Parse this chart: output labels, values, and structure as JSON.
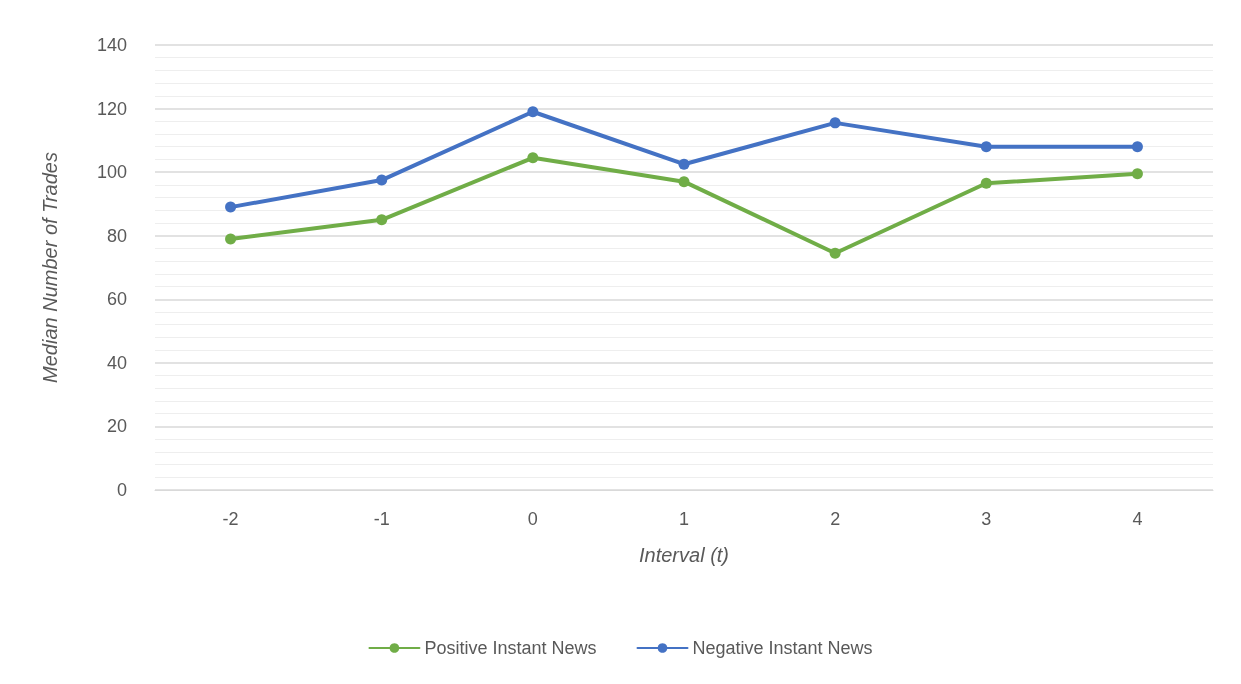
{
  "chart_data": {
    "type": "line",
    "xlabel": "Interval (t)",
    "ylabel": "Median Number of Trades",
    "categories": [
      "-2",
      "-1",
      "0",
      "1",
      "2",
      "3",
      "4"
    ],
    "series": [
      {
        "name": "Positive Instant News",
        "color": "#70ad47",
        "values": [
          79,
          85,
          104.5,
          97,
          74.5,
          96.5,
          99.5
        ]
      },
      {
        "name": "Negative Instant News",
        "color": "#4472c4",
        "values": [
          89,
          97.5,
          119,
          102.5,
          115.5,
          108,
          108
        ]
      }
    ],
    "ylim": [
      0,
      140
    ],
    "yticks": [
      0,
      20,
      40,
      60,
      80,
      100,
      120,
      140
    ],
    "grid": "y",
    "legend": "bottom",
    "marker": "circle",
    "line_style": "solid"
  }
}
